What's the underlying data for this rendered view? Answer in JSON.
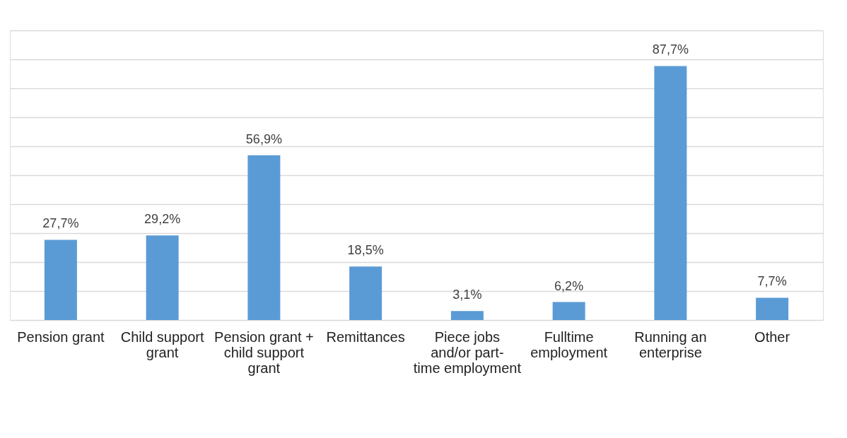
{
  "chart_data": {
    "type": "bar",
    "categories": [
      "Pension grant",
      "Child support grant",
      "Pension grant + child support grant",
      "Remittances",
      "Piece jobs and/or part-time employment",
      "Fulltime employment",
      "Running an enterprise",
      "Other"
    ],
    "values": [
      27.7,
      29.2,
      56.9,
      18.5,
      3.1,
      6.2,
      87.7,
      7.7
    ],
    "value_labels": [
      "27,7%",
      "29,2%",
      "56,9%",
      "18,5%",
      "3,1%",
      "6,2%",
      "87,7%",
      "7,7%"
    ],
    "color": "#5b9bd5",
    "ylim": [
      0,
      100
    ],
    "yticks": [
      0,
      10,
      20,
      30,
      40,
      50,
      60,
      70,
      80,
      90,
      100
    ],
    "grid": "y",
    "tick_labels": "x"
  }
}
